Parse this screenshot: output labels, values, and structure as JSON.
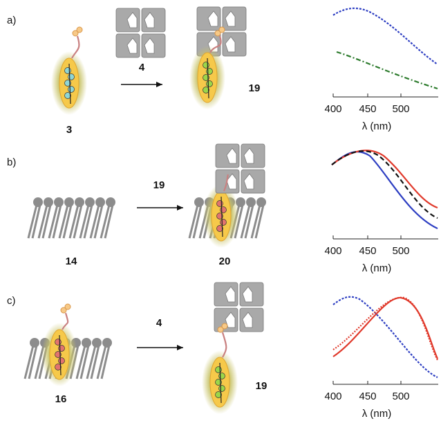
{
  "panels": [
    {
      "label": "a)",
      "compounds": [
        "3",
        "4",
        "19"
      ],
      "axis": {
        "ticks": [
          400,
          450,
          500
        ],
        "title": "λ (nm)"
      }
    },
    {
      "label": "b)",
      "compounds": [
        "14",
        "19",
        "20"
      ],
      "axis": {
        "ticks": [
          400,
          450,
          500
        ],
        "title": "λ (nm)"
      }
    },
    {
      "label": "c)",
      "compounds": [
        "16",
        "4",
        "19"
      ],
      "axis": {
        "ticks": [
          400,
          450,
          500
        ],
        "title": "λ (nm)"
      }
    }
  ]
}
